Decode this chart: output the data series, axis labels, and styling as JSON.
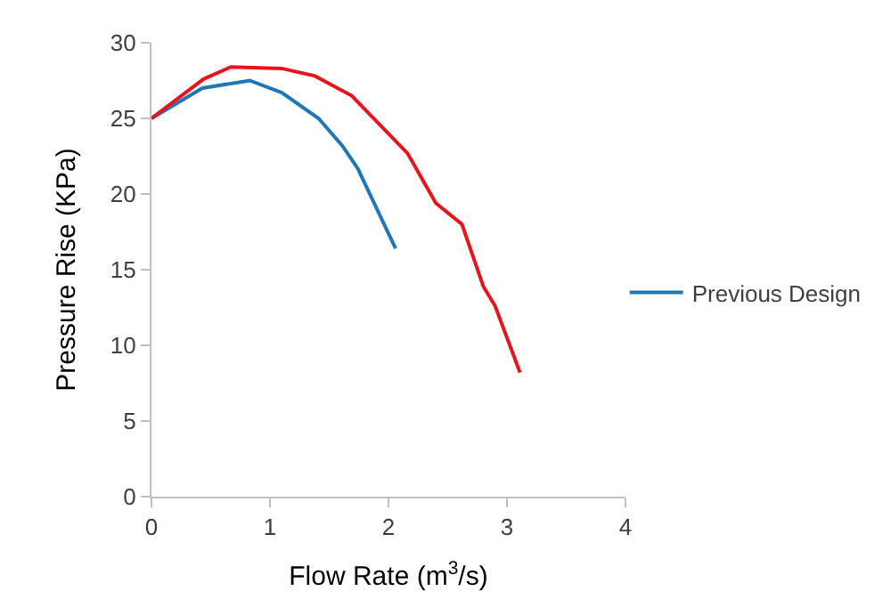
{
  "chart_data": {
    "type": "line",
    "xlabel": "Flow Rate (m$^{3}$/s)",
    "ylabel": "Pressure Rise (KPa)",
    "xlim": [
      0,
      4
    ],
    "xticks": [
      0,
      1,
      2,
      3,
      4
    ],
    "ylim": [
      0,
      30
    ],
    "yticks": [
      0,
      5,
      10,
      15,
      20,
      25,
      30
    ],
    "legend": "right",
    "marker": "none",
    "line_style": "solid",
    "series": [
      {
        "name": "Previous Design",
        "color": "#1f77b4",
        "x": [
          0,
          0.43,
          0.83,
          1.1,
          1.41,
          1.61,
          1.74,
          2.06
        ],
        "values": [
          25.0,
          27.0,
          27.5,
          26.7,
          25.0,
          23.2,
          21.7,
          16.4
        ]
      },
      {
        "color": "#e8141c",
        "x": [
          0,
          0.44,
          0.67,
          1.1,
          1.38,
          1.69,
          2.16,
          2.4,
          2.62,
          2.8,
          2.9,
          3.11
        ],
        "values": [
          25.0,
          27.6,
          28.4,
          28.3,
          27.8,
          26.5,
          22.7,
          19.4,
          18.0,
          13.9,
          12.6,
          8.2
        ]
      }
    ]
  }
}
